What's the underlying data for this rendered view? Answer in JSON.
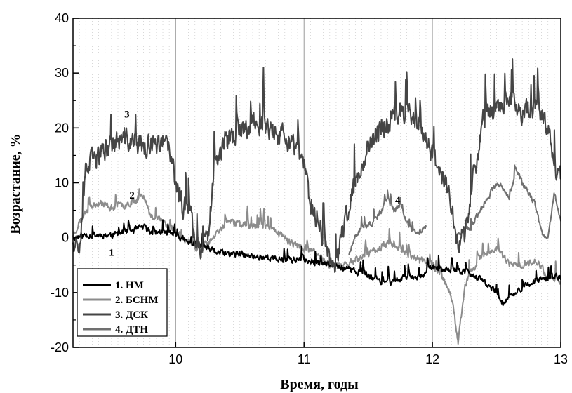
{
  "chart_data": {
    "type": "line",
    "xlabel": "Время, годы",
    "ylabel": "Возрастание, %",
    "xlim": [
      9.2,
      13
    ],
    "ylim": [
      -20,
      40
    ],
    "x_ticks": [
      10,
      11,
      12,
      13
    ],
    "y_ticks": [
      -20,
      -10,
      0,
      10,
      20,
      30,
      40
    ],
    "x_tick_labels": [
      "10",
      "11",
      "12",
      "13"
    ],
    "y_tick_labels": [
      "-20",
      "-10",
      "0",
      "10",
      "20",
      "30",
      "40"
    ],
    "grid": "vertical major and dotted minor",
    "legend_position": "bottom-left",
    "series": [
      {
        "name": "1. НМ",
        "color": "#000000",
        "width": 2,
        "points": [
          [
            9.2,
            0
          ],
          [
            9.3,
            0.5
          ],
          [
            9.4,
            0.5
          ],
          [
            9.5,
            0.5
          ],
          [
            9.6,
            1
          ],
          [
            9.7,
            1.5
          ],
          [
            9.75,
            2
          ],
          [
            9.8,
            1
          ],
          [
            9.9,
            1
          ],
          [
            10,
            0.5
          ],
          [
            10.1,
            -1
          ],
          [
            10.2,
            -1.5
          ],
          [
            10.3,
            -2.5
          ],
          [
            10.4,
            -3
          ],
          [
            10.5,
            -3
          ],
          [
            10.6,
            -3.5
          ],
          [
            10.7,
            -3.5
          ],
          [
            10.8,
            -4
          ],
          [
            10.9,
            -4
          ],
          [
            11,
            -4
          ],
          [
            11.1,
            -4.5
          ],
          [
            11.2,
            -5
          ],
          [
            11.3,
            -5.5
          ],
          [
            11.4,
            -6
          ],
          [
            11.5,
            -7
          ],
          [
            11.6,
            -8
          ],
          [
            11.7,
            -8
          ],
          [
            11.8,
            -7
          ],
          [
            11.9,
            -7
          ],
          [
            12,
            -5.5
          ],
          [
            12.1,
            -6
          ],
          [
            12.2,
            -6
          ],
          [
            12.3,
            -6.5
          ],
          [
            12.4,
            -8
          ],
          [
            12.5,
            -10
          ],
          [
            12.55,
            -12
          ],
          [
            12.6,
            -11
          ],
          [
            12.7,
            -9
          ],
          [
            12.8,
            -8
          ],
          [
            12.9,
            -7.5
          ],
          [
            13,
            -7
          ]
        ]
      },
      {
        "name": "2. БСНМ",
        "color": "#8c8c8c",
        "width": 2,
        "points": [
          [
            9.2,
            0.5
          ],
          [
            9.3,
            5
          ],
          [
            9.4,
            6.5
          ],
          [
            9.5,
            5.5
          ],
          [
            9.6,
            6
          ],
          [
            9.7,
            7
          ],
          [
            9.75,
            8
          ],
          [
            9.8,
            4
          ],
          [
            9.9,
            3
          ],
          [
            10,
            1
          ],
          [
            10.1,
            -1
          ],
          [
            10.2,
            -2
          ],
          [
            10.3,
            0
          ],
          [
            10.4,
            3
          ],
          [
            10.5,
            2.5
          ],
          [
            10.6,
            2
          ],
          [
            10.7,
            2
          ],
          [
            10.8,
            1
          ],
          [
            10.9,
            -1
          ],
          [
            11,
            -2
          ],
          [
            11.1,
            -3
          ],
          [
            11.2,
            -5
          ],
          [
            11.3,
            -5
          ],
          [
            11.4,
            -4
          ],
          [
            11.5,
            -3
          ],
          [
            11.6,
            -1.5
          ],
          [
            11.7,
            -1
          ],
          [
            11.8,
            -3
          ],
          [
            11.9,
            -4
          ],
          [
            12,
            -5
          ],
          [
            12.1,
            -8
          ],
          [
            12.15,
            -11
          ],
          [
            12.2,
            -19
          ],
          [
            12.25,
            -9
          ],
          [
            12.3,
            -6
          ],
          [
            12.4,
            -3
          ],
          [
            12.5,
            -2
          ],
          [
            12.6,
            -5
          ],
          [
            12.7,
            -5
          ],
          [
            12.8,
            -4
          ],
          [
            12.9,
            -7
          ],
          [
            13,
            -8
          ]
        ]
      },
      {
        "name": "3. ДСК",
        "color": "#454545",
        "width": 2,
        "points": [
          [
            9.2,
            0
          ],
          [
            9.25,
            -1
          ],
          [
            9.3,
            12
          ],
          [
            9.35,
            14
          ],
          [
            9.4,
            15
          ],
          [
            9.5,
            17
          ],
          [
            9.6,
            18
          ],
          [
            9.7,
            17
          ],
          [
            9.8,
            16.5
          ],
          [
            9.9,
            17
          ],
          [
            9.95,
            16
          ],
          [
            10,
            10
          ],
          [
            10.05,
            6
          ],
          [
            10.1,
            6
          ],
          [
            10.15,
            0
          ],
          [
            10.2,
            -2
          ],
          [
            10.25,
            -1
          ],
          [
            10.3,
            14
          ],
          [
            10.4,
            18
          ],
          [
            10.5,
            19
          ],
          [
            10.6,
            21
          ],
          [
            10.7,
            20
          ],
          [
            10.8,
            19
          ],
          [
            10.9,
            17
          ],
          [
            11,
            13
          ],
          [
            11.05,
            6
          ],
          [
            11.1,
            2
          ],
          [
            11.15,
            0
          ],
          [
            11.2,
            -3
          ],
          [
            11.25,
            -5
          ],
          [
            11.3,
            1
          ],
          [
            11.4,
            10
          ],
          [
            11.5,
            17
          ],
          [
            11.6,
            20
          ],
          [
            11.7,
            22
          ],
          [
            11.8,
            23
          ],
          [
            11.9,
            21
          ],
          [
            11.95,
            18
          ],
          [
            12,
            15
          ],
          [
            12.05,
            13
          ],
          [
            12.1,
            10
          ],
          [
            12.15,
            6
          ],
          [
            12.2,
            -1
          ],
          [
            12.25,
            0
          ],
          [
            12.3,
            8
          ],
          [
            12.35,
            14
          ],
          [
            12.4,
            22
          ],
          [
            12.5,
            24
          ],
          [
            12.6,
            24
          ],
          [
            12.7,
            23
          ],
          [
            12.8,
            24
          ],
          [
            12.9,
            21
          ],
          [
            12.95,
            12
          ],
          [
            13,
            12
          ]
        ]
      },
      {
        "name": "4. ДТН",
        "color": "#707070",
        "width": 2,
        "points": [
          [
            11.35,
            -3
          ],
          [
            11.4,
            0
          ],
          [
            11.45,
            2
          ],
          [
            11.5,
            2
          ],
          [
            11.55,
            3
          ],
          [
            11.6,
            5
          ],
          [
            11.65,
            7
          ],
          [
            11.7,
            5
          ],
          [
            11.75,
            6
          ],
          [
            11.8,
            3
          ],
          [
            11.85,
            1
          ],
          [
            11.9,
            1
          ],
          [
            11.95,
            2
          ]
        ],
        "points_b": [
          [
            12.2,
            1
          ],
          [
            12.3,
            2
          ],
          [
            12.4,
            6
          ],
          [
            12.5,
            10
          ],
          [
            12.55,
            9
          ],
          [
            12.6,
            7
          ],
          [
            12.65,
            13
          ],
          [
            12.7,
            10
          ],
          [
            12.8,
            6
          ],
          [
            12.85,
            1
          ],
          [
            12.9,
            0
          ],
          [
            12.95,
            8
          ],
          [
            13,
            3
          ]
        ]
      }
    ],
    "annotations": [
      {
        "text": "1",
        "x": 9.5,
        "y": -3.3
      },
      {
        "text": "2",
        "x": 9.66,
        "y": 7.1
      },
      {
        "text": "3",
        "x": 9.62,
        "y": 21.9
      },
      {
        "text": "4",
        "x": 11.73,
        "y": 6.2
      }
    ]
  }
}
